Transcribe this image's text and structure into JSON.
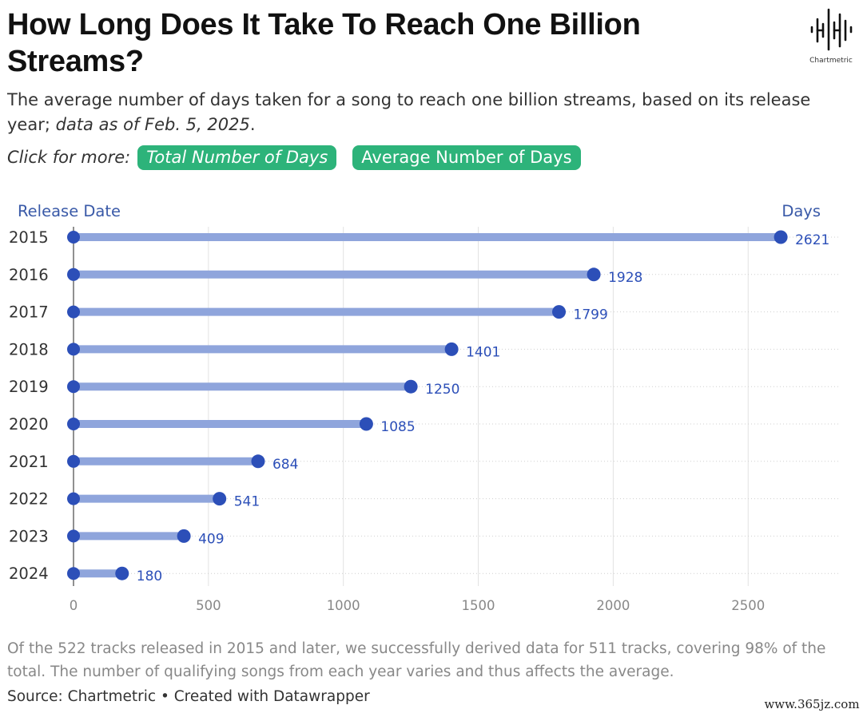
{
  "header": {
    "title": "How Long Does It Take To Reach One Billion Streams?",
    "subtitle_main": "The average number of days taken for a song to reach one billion streams, based on its release year; ",
    "subtitle_italic": "data as of Feb. 5, 2025",
    "subtitle_end": "."
  },
  "logo": {
    "label": "Chartmetric",
    "icon": "chartmetric-soundwave-logo"
  },
  "links": {
    "lead": "Click for more:",
    "total_days": "Total Number of Days",
    "average_days": "Average Number of Days"
  },
  "colors": {
    "accent_green": "#2db37a",
    "bar": "#8fa5dc",
    "dot": "#2c4fb8",
    "value_label": "#2c4fb8",
    "axis_header": "#3a5aa8"
  },
  "chart_data": {
    "type": "bar",
    "orientation": "horizontal",
    "style": "lollipop",
    "y_header": "Release Date",
    "x_header": "Days",
    "categories": [
      "2015",
      "2016",
      "2017",
      "2018",
      "2019",
      "2020",
      "2021",
      "2022",
      "2023",
      "2024"
    ],
    "values": [
      2621,
      1928,
      1799,
      1401,
      1250,
      1085,
      684,
      541,
      409,
      180
    ],
    "xlim": [
      0,
      2850
    ],
    "xticks": [
      0,
      500,
      1000,
      1500,
      2000,
      2500
    ],
    "grid": true
  },
  "footer": {
    "note": "Of the 522 tracks released in 2015 and later, we successfully derived data for 511 tracks, covering 98% of the total. The number of qualifying songs from each year varies and thus affects the average.",
    "source": "Source: Chartmetric • Created with Datawrapper"
  },
  "watermark": "www.365jz.com"
}
